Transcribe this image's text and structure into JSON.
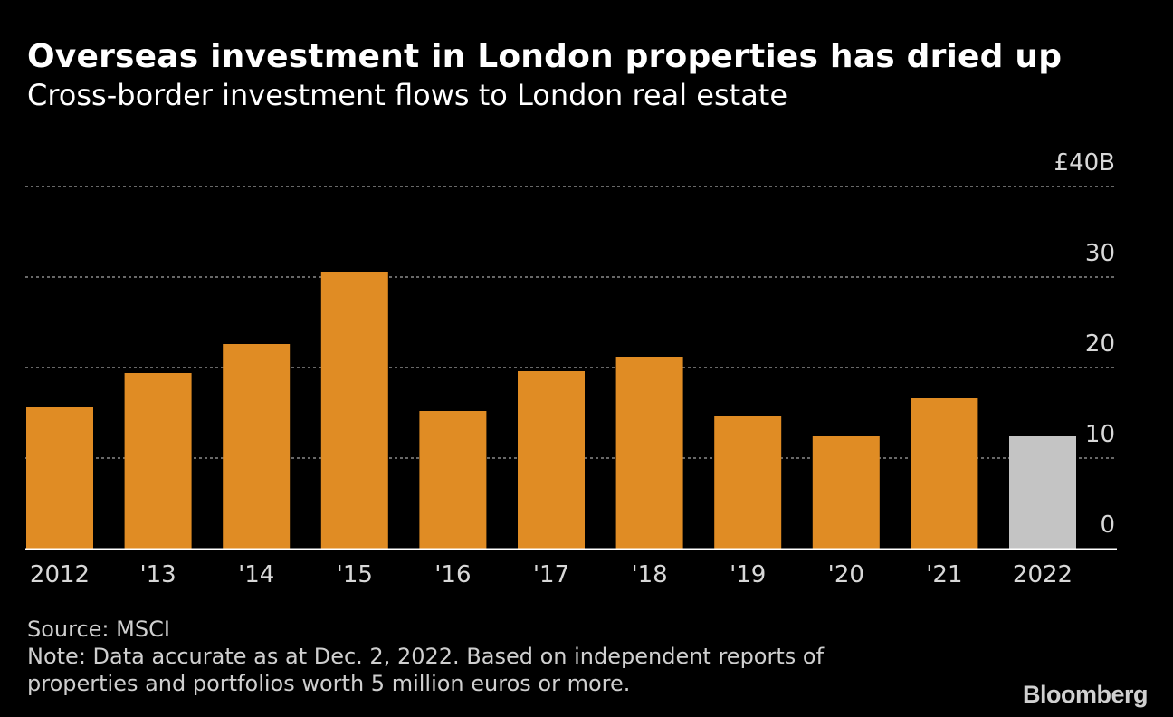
{
  "header": {
    "title": "Overseas investment in London properties has dried up",
    "subtitle": "Cross-border investment flows to London real estate"
  },
  "footer": {
    "source": "Source: MSCI",
    "note_line1": "Note: Data accurate as at Dec. 2, 2022. Based on independent reports of",
    "note_line2": "properties and portfolios worth 5 million euros or more."
  },
  "brand": {
    "logo_text": "Bloomberg"
  },
  "colors": {
    "bar": "#e08c24",
    "bar_highlight": "#c4c4c4",
    "gridline": "#8a8a8a",
    "axis": "#ffffff"
  },
  "chart_data": {
    "type": "bar",
    "categories": [
      "2012",
      "'13",
      "'14",
      "'15",
      "'16",
      "'17",
      "'18",
      "'19",
      "'20",
      "'21",
      "2022"
    ],
    "values": [
      15.6,
      19.4,
      22.6,
      30.6,
      15.2,
      19.6,
      21.2,
      14.6,
      12.4,
      16.6,
      12.4
    ],
    "highlight_index": 10,
    "ylim": [
      0,
      40
    ],
    "yticks": [
      0,
      10,
      20,
      30,
      40
    ],
    "ytick_labels": [
      "0",
      "10",
      "20",
      "30",
      "£40B"
    ],
    "y_axis_side": "right",
    "grid": true,
    "title": "Overseas investment in London properties has dried up",
    "subtitle": "Cross-border investment flows to London real estate",
    "xlabel": "",
    "ylabel": ""
  }
}
